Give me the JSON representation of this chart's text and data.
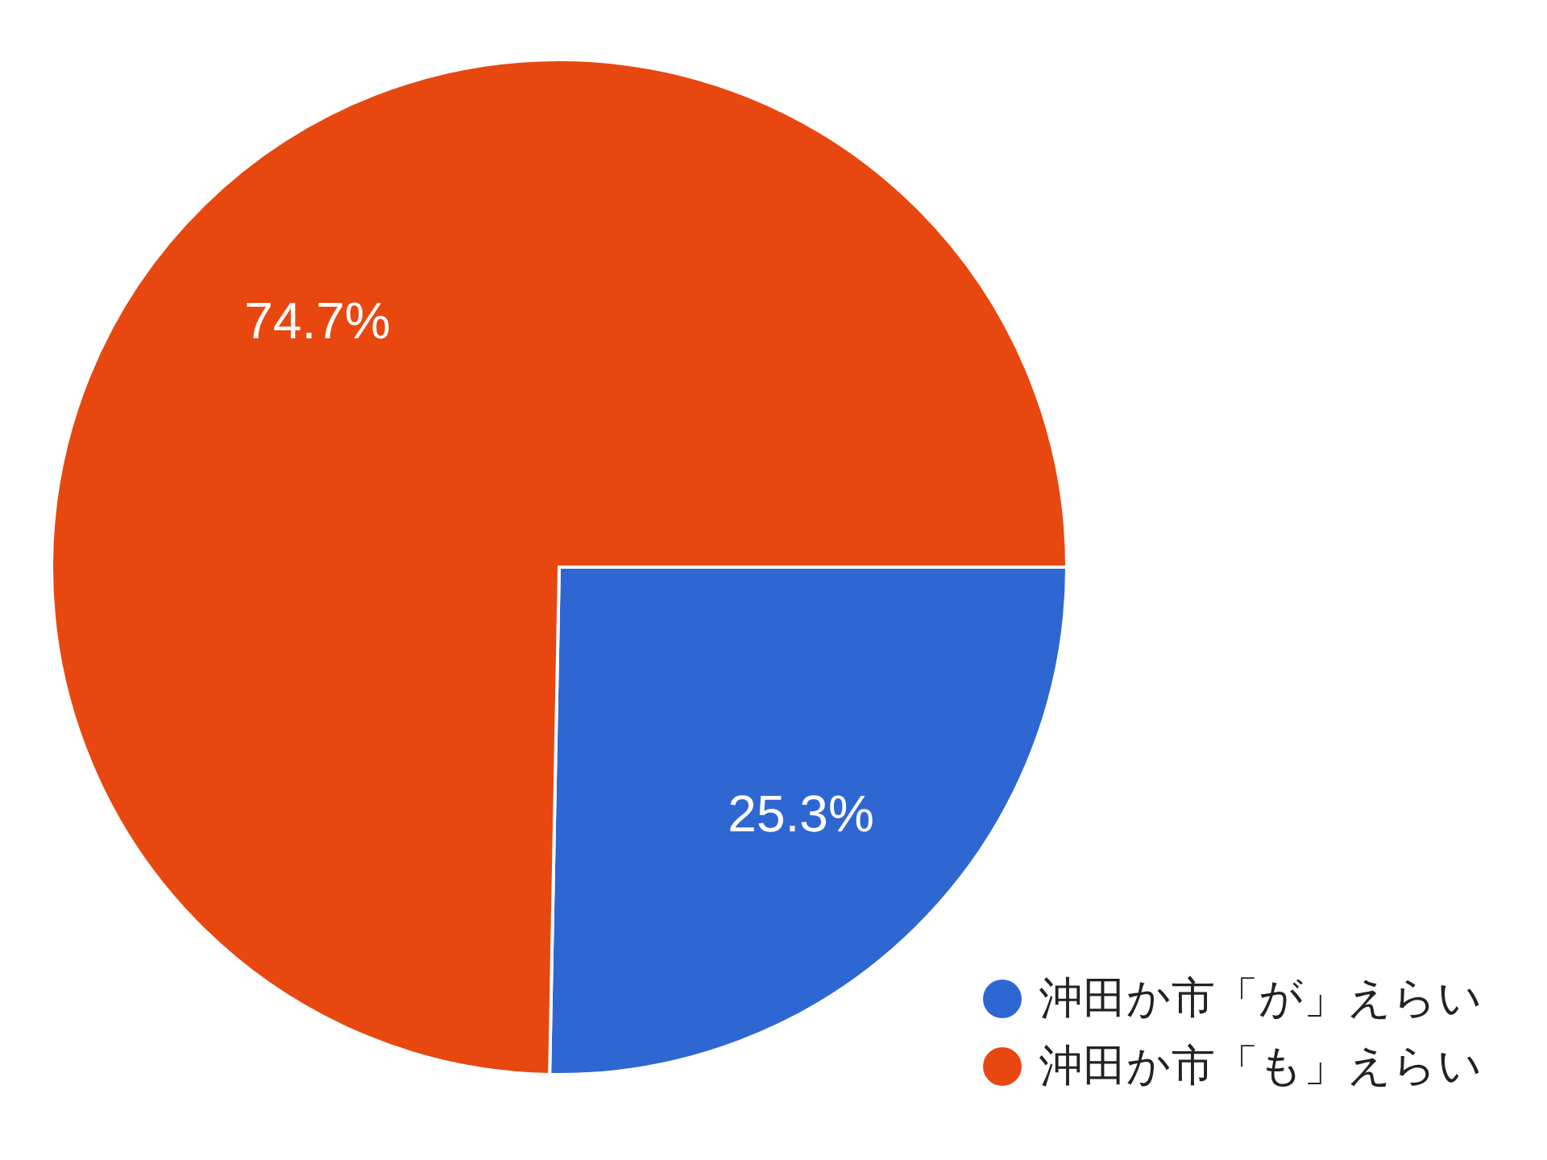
{
  "chart_data": {
    "type": "pie",
    "categories": [
      "沖田か市「が」えらい",
      "沖田か市「も」えらい"
    ],
    "values": [
      25.3,
      74.7
    ],
    "colors": [
      "#2f67d2",
      "#e8470f"
    ],
    "value_labels": [
      "25.3%",
      "74.7%"
    ],
    "legend": "bottom right"
  }
}
